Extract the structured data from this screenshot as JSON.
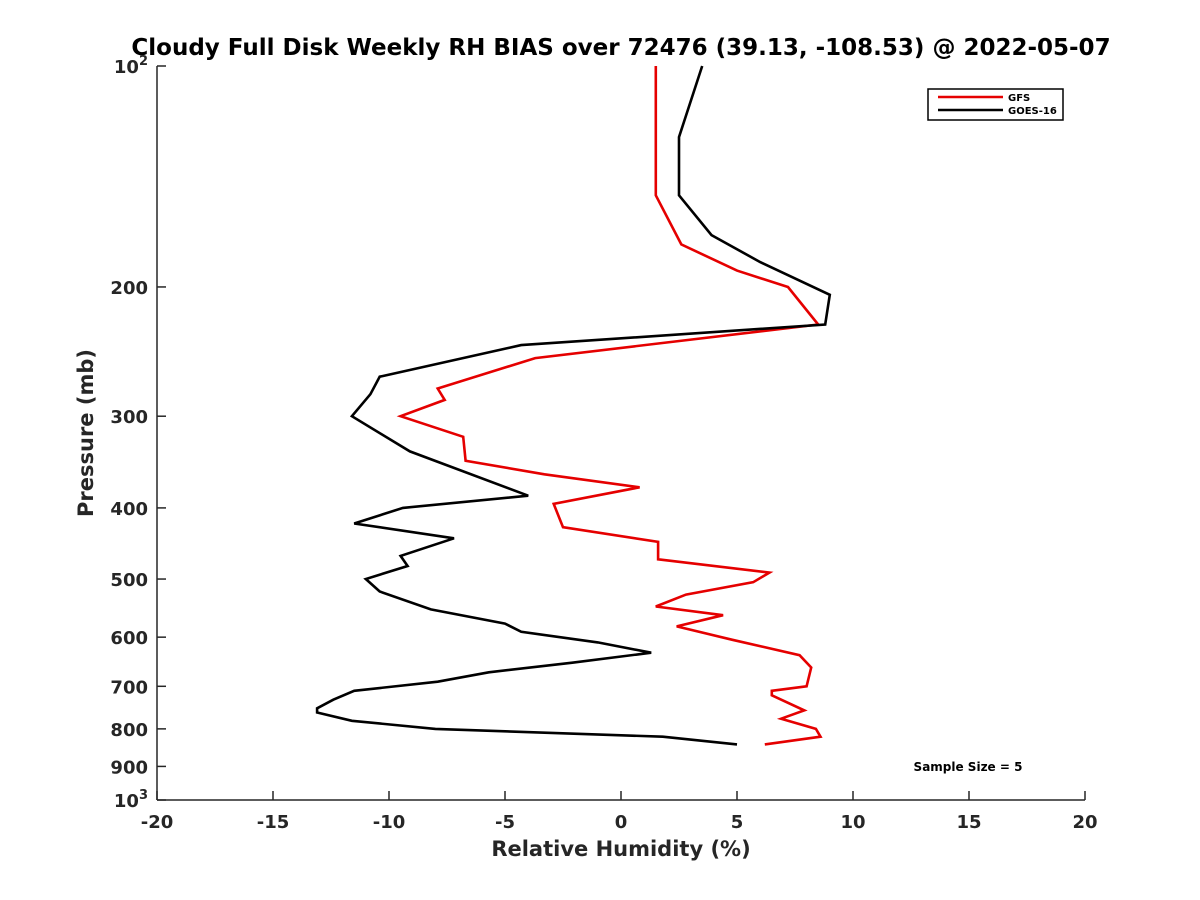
{
  "chart_data": {
    "type": "line",
    "title": "Cloudy Full Disk Weekly RH BIAS over 72476 (39.13, -108.53) @ 2022-05-07",
    "xlabel": "Relative Humidity (%)",
    "ylabel": "Pressure (mb)",
    "xlim": [
      -20,
      20
    ],
    "ylim": [
      100,
      1000
    ],
    "y_scale": "log",
    "y_reversed": true,
    "x_ticks": [
      -20,
      -15,
      -10,
      -5,
      0,
      5,
      10,
      15,
      20
    ],
    "x_tick_labels": [
      "-20",
      "-15",
      "-10",
      "-5",
      "0",
      "5",
      "10",
      "15",
      "20"
    ],
    "y_ticks": [
      100,
      200,
      300,
      400,
      500,
      600,
      700,
      800,
      900,
      1000
    ],
    "y_tick_labels": [
      {
        "base": "10",
        "sup": "2"
      },
      {
        "base": "200",
        "sup": ""
      },
      {
        "base": "300",
        "sup": ""
      },
      {
        "base": "400",
        "sup": ""
      },
      {
        "base": "500",
        "sup": ""
      },
      {
        "base": "600",
        "sup": ""
      },
      {
        "base": "700",
        "sup": ""
      },
      {
        "base": "800",
        "sup": ""
      },
      {
        "base": "900",
        "sup": ""
      },
      {
        "base": "10",
        "sup": "3"
      }
    ],
    "grid": false,
    "legend_position": "top-right",
    "annotation": "Sample Size = 5",
    "series": [
      {
        "name": "GFS",
        "color": "#e50000",
        "points": [
          [
            1.5,
            100
          ],
          [
            1.5,
            125
          ],
          [
            1.5,
            150
          ],
          [
            2.6,
            175
          ],
          [
            5.0,
            190
          ],
          [
            7.2,
            200
          ],
          [
            8.5,
            225
          ],
          [
            -3.7,
            250
          ],
          [
            -7.9,
            275
          ],
          [
            -7.6,
            285
          ],
          [
            -9.5,
            300
          ],
          [
            -6.8,
            320
          ],
          [
            -6.7,
            345
          ],
          [
            -3.3,
            360
          ],
          [
            0.8,
            375
          ],
          [
            -2.9,
            395
          ],
          [
            -2.5,
            425
          ],
          [
            1.6,
            445
          ],
          [
            1.6,
            470
          ],
          [
            6.4,
            490
          ],
          [
            5.7,
            505
          ],
          [
            2.8,
            525
          ],
          [
            1.5,
            545
          ],
          [
            4.4,
            560
          ],
          [
            2.4,
            580
          ],
          [
            4.8,
            605
          ],
          [
            7.7,
            635
          ],
          [
            8.2,
            660
          ],
          [
            8.0,
            700
          ],
          [
            6.5,
            710
          ],
          [
            6.5,
            720
          ],
          [
            7.9,
            755
          ],
          [
            6.9,
            775
          ],
          [
            8.4,
            800
          ],
          [
            8.6,
            820
          ],
          [
            6.2,
            840
          ]
        ]
      },
      {
        "name": "GOES-16",
        "color": "#000000",
        "points": [
          [
            3.5,
            100
          ],
          [
            2.5,
            125
          ],
          [
            2.5,
            150
          ],
          [
            3.9,
            170
          ],
          [
            6.0,
            185
          ],
          [
            9.0,
            205
          ],
          [
            8.8,
            225
          ],
          [
            -4.3,
            240
          ],
          [
            -10.4,
            265
          ],
          [
            -10.8,
            280
          ],
          [
            -11.6,
            300
          ],
          [
            -9.1,
            335
          ],
          [
            -4.0,
            385
          ],
          [
            -9.4,
            400
          ],
          [
            -11.5,
            420
          ],
          [
            -7.2,
            440
          ],
          [
            -9.5,
            465
          ],
          [
            -9.2,
            480
          ],
          [
            -11.0,
            500
          ],
          [
            -10.4,
            520
          ],
          [
            -8.2,
            550
          ],
          [
            -5.0,
            575
          ],
          [
            -4.3,
            590
          ],
          [
            -1.0,
            610
          ],
          [
            1.3,
            630
          ],
          [
            -2.1,
            650
          ],
          [
            -5.7,
            670
          ],
          [
            -7.9,
            690
          ],
          [
            -11.5,
            710
          ],
          [
            -12.4,
            730
          ],
          [
            -13.1,
            750
          ],
          [
            -13.1,
            760
          ],
          [
            -11.6,
            780
          ],
          [
            -8.0,
            800
          ],
          [
            1.8,
            820
          ],
          [
            5.0,
            840
          ]
        ]
      }
    ]
  }
}
